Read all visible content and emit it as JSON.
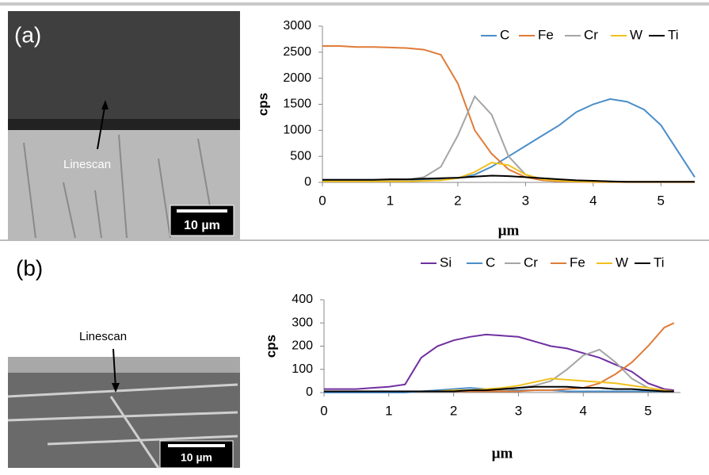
{
  "panels": [
    {
      "label": "(a)",
      "annotation": "Linescan",
      "scale_bar": "10 µm"
    },
    {
      "label": "(b)",
      "annotation": "Linescan",
      "scale_bar": "10 µm"
    }
  ],
  "chart_data": [
    {
      "type": "line",
      "x_label": "µm",
      "y_label": "cps",
      "x": [
        0,
        0.25,
        0.5,
        0.75,
        1,
        1.25,
        1.5,
        1.75,
        2,
        2.25,
        2.5,
        2.75,
        3,
        3.25,
        3.5,
        3.75,
        4,
        4.25,
        4.5,
        4.75,
        5,
        5.25,
        5.5
      ],
      "series": [
        {
          "name": "C",
          "color": "#4a8ec9",
          "values": [
            50,
            50,
            50,
            50,
            50,
            50,
            50,
            60,
            80,
            150,
            300,
            500,
            700,
            900,
            1100,
            1350,
            1500,
            1600,
            1550,
            1400,
            1100,
            600,
            100
          ]
        },
        {
          "name": "Fe",
          "color": "#e07b39",
          "values": [
            2620,
            2620,
            2600,
            2600,
            2590,
            2580,
            2550,
            2450,
            1900,
            1000,
            550,
            250,
            100,
            40,
            20,
            10,
            5,
            5,
            5,
            5,
            5,
            5,
            5
          ]
        },
        {
          "name": "Cr",
          "color": "#a5a5a5",
          "values": [
            30,
            30,
            30,
            30,
            40,
            50,
            100,
            300,
            900,
            1650,
            1300,
            500,
            150,
            60,
            30,
            20,
            10,
            10,
            10,
            10,
            10,
            10,
            10
          ]
        },
        {
          "name": "W",
          "color": "#f2c01e",
          "values": [
            20,
            20,
            20,
            20,
            20,
            20,
            30,
            40,
            80,
            200,
            380,
            330,
            150,
            60,
            30,
            20,
            10,
            10,
            10,
            10,
            10,
            10,
            10
          ]
        },
        {
          "name": "Ti",
          "color": "#000000",
          "values": [
            50,
            50,
            50,
            50,
            60,
            60,
            70,
            80,
            90,
            110,
            130,
            120,
            100,
            80,
            60,
            40,
            30,
            20,
            10,
            10,
            10,
            10,
            10
          ]
        }
      ],
      "xlim": [
        0,
        5.5
      ],
      "ylim": [
        0,
        3000
      ],
      "xticks": [
        0,
        1,
        2,
        3,
        4,
        5
      ],
      "yticks": [
        0,
        500,
        1000,
        1500,
        2000,
        2500,
        3000
      ],
      "legend": "top-right"
    },
    {
      "type": "line",
      "x_label": "µm",
      "y_label": "cps",
      "x": [
        0,
        0.25,
        0.5,
        0.75,
        1,
        1.25,
        1.5,
        1.75,
        2,
        2.25,
        2.5,
        2.75,
        3,
        3.25,
        3.5,
        3.75,
        4,
        4.25,
        4.5,
        4.75,
        5,
        5.25,
        5.4
      ],
      "series": [
        {
          "name": "Si",
          "color": "#7030a0",
          "values": [
            15,
            15,
            15,
            20,
            25,
            35,
            150,
            200,
            225,
            240,
            250,
            245,
            240,
            220,
            200,
            190,
            170,
            150,
            120,
            90,
            40,
            15,
            10
          ]
        },
        {
          "name": "C",
          "color": "#4a8ec9",
          "values": [
            0,
            0,
            0,
            0,
            0,
            0,
            5,
            10,
            15,
            20,
            15,
            10,
            10,
            10,
            10,
            5,
            5,
            5,
            5,
            5,
            5,
            5,
            5
          ]
        },
        {
          "name": "Cr",
          "color": "#a5a5a5",
          "values": [
            5,
            5,
            5,
            5,
            5,
            5,
            5,
            5,
            5,
            10,
            10,
            10,
            20,
            30,
            50,
            100,
            160,
            185,
            130,
            60,
            20,
            10,
            5
          ]
        },
        {
          "name": "Fe",
          "color": "#e07b39",
          "values": [
            5,
            5,
            5,
            5,
            5,
            5,
            5,
            5,
            5,
            5,
            5,
            5,
            5,
            10,
            10,
            15,
            20,
            40,
            80,
            130,
            200,
            280,
            300
          ]
        },
        {
          "name": "W",
          "color": "#f2c01e",
          "values": [
            5,
            5,
            5,
            5,
            5,
            5,
            5,
            5,
            10,
            10,
            15,
            20,
            30,
            45,
            60,
            55,
            50,
            45,
            40,
            30,
            20,
            10,
            5
          ]
        },
        {
          "name": "Ti",
          "color": "#000000",
          "values": [
            5,
            5,
            5,
            5,
            5,
            5,
            5,
            5,
            5,
            10,
            10,
            15,
            20,
            25,
            25,
            25,
            20,
            20,
            15,
            15,
            10,
            5,
            5
          ]
        }
      ],
      "xlim": [
        0,
        5.5
      ],
      "ylim": [
        0,
        400
      ],
      "xticks": [
        0,
        1,
        2,
        3,
        4,
        5
      ],
      "yticks": [
        0,
        100,
        200,
        300,
        400
      ],
      "legend": "top-right"
    }
  ]
}
